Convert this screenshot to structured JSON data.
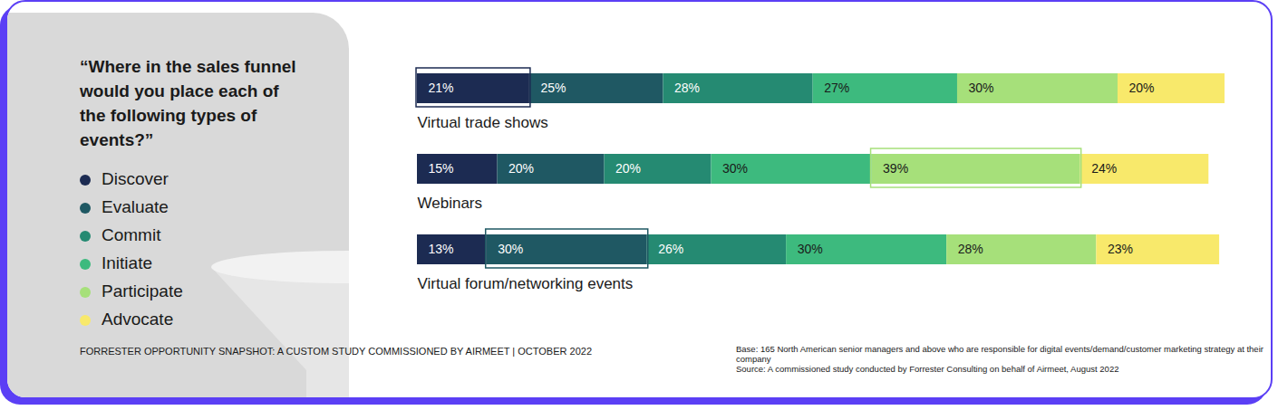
{
  "chart_data": {
    "type": "bar",
    "orientation": "horizontal",
    "stacked": true,
    "data_labels": true,
    "tick_labels": false,
    "grid": false,
    "legend": "left",
    "title": "“Where in the sales funnel would you place each of the following types of events?”",
    "caption": "FORRESTER OPPORTUNITY SNAPSHOT: A CUSTOM STUDY COMMISSIONED BY AIRMEET | OCTOBER 2022",
    "notes": [
      "Base: 165 North American senior managers and above who are responsible for digital events/demand/customer marketing strategy at their company",
      "Source: A commissioned study conducted by Forrester Consulting on behalf of Airmeet, August 2022"
    ],
    "categories": [
      "Virtual trade shows",
      "Webinars",
      "Virtual forum/networking events"
    ],
    "xlim": [
      0,
      151
    ],
    "series": [
      {
        "name": "Discover",
        "color": "#1c2b52",
        "values": [
          21,
          15,
          13
        ],
        "value_labels": [
          "21%",
          "15%",
          "13%"
        ]
      },
      {
        "name": "Evaluate",
        "color": "#1f5863",
        "values": [
          25,
          20,
          30
        ],
        "value_labels": [
          "25%",
          "20%",
          "30%"
        ]
      },
      {
        "name": "Commit",
        "color": "#258a72",
        "values": [
          28,
          20,
          26
        ],
        "value_labels": [
          "28%",
          "20%",
          "26%"
        ]
      },
      {
        "name": "Initiate",
        "color": "#3dba7e",
        "values": [
          27,
          30,
          30
        ],
        "value_labels": [
          "27%",
          "30%",
          "30%"
        ]
      },
      {
        "name": "Participate",
        "color": "#a6e07a",
        "values": [
          30,
          39,
          28
        ],
        "value_labels": [
          "30%",
          "39%",
          "28%"
        ]
      },
      {
        "name": "Advocate",
        "color": "#f8e96b",
        "values": [
          20,
          24,
          23
        ],
        "value_labels": [
          "20%",
          "24%",
          "23%"
        ]
      }
    ]
  }
}
